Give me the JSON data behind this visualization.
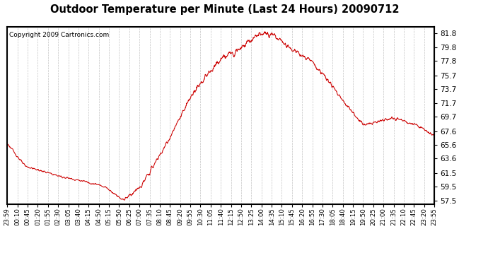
{
  "title": "Outdoor Temperature per Minute (Last 24 Hours) 20090712",
  "copyright": "Copyright 2009 Cartronics.com",
  "line_color": "#cc0000",
  "background_color": "#ffffff",
  "plot_bg_color": "#ffffff",
  "grid_color": "#aaaaaa",
  "yticks": [
    57.5,
    59.5,
    61.5,
    63.6,
    65.6,
    67.6,
    69.7,
    71.7,
    73.7,
    75.7,
    77.8,
    79.8,
    81.8
  ],
  "ylim": [
    57.0,
    82.8
  ],
  "xtick_labels": [
    "23:59",
    "00:10",
    "00:45",
    "01:20",
    "01:55",
    "02:30",
    "03:05",
    "03:40",
    "04:15",
    "04:50",
    "05:15",
    "05:50",
    "06:25",
    "07:00",
    "07:35",
    "08:10",
    "08:45",
    "09:20",
    "09:55",
    "10:30",
    "11:05",
    "11:40",
    "12:15",
    "12:50",
    "13:25",
    "14:00",
    "14:35",
    "15:10",
    "15:45",
    "16:20",
    "16:55",
    "17:30",
    "18:05",
    "18:40",
    "19:15",
    "19:50",
    "20:25",
    "21:00",
    "21:35",
    "22:10",
    "22:45",
    "23:20",
    "23:55"
  ],
  "n_points": 1440,
  "keypoints_x": [
    0,
    60,
    180,
    270,
    330,
    390,
    450,
    540,
    630,
    720,
    810,
    855,
    900,
    960,
    1020,
    1080,
    1140,
    1200,
    1300,
    1380,
    1439
  ],
  "keypoints_y": [
    65.8,
    62.5,
    61.0,
    60.2,
    59.5,
    57.6,
    59.5,
    66.0,
    73.5,
    78.0,
    80.5,
    81.9,
    81.5,
    79.5,
    78.0,
    75.0,
    71.5,
    68.5,
    69.5,
    68.5,
    66.8
  ]
}
